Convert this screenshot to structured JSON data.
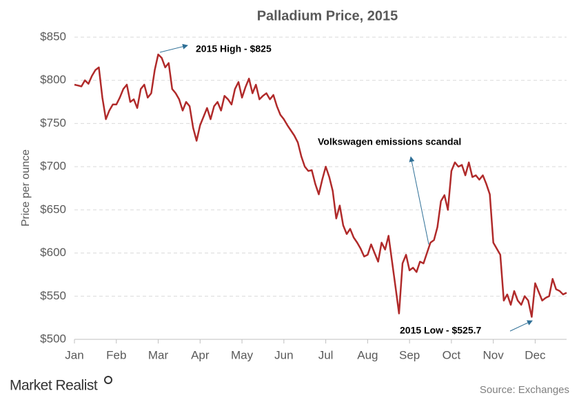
{
  "chart_data": {
    "type": "line",
    "title": "Palladium  Price, 2015",
    "ylabel": "Price per ounce",
    "source": "Source: Exchanges",
    "brand": "Market Realist",
    "annotations": [
      "2015 High  - $825",
      "Volkswagen emissions scandal",
      "2015 Low  - $525.7"
    ],
    "color": "#b02a2a",
    "grid": true,
    "ylim": [
      500,
      850
    ],
    "yticks": [
      {
        "value": 500,
        "label": "$500"
      },
      {
        "value": 550,
        "label": "$550"
      },
      {
        "value": 600,
        "label": "$600"
      },
      {
        "value": 650,
        "label": "$650"
      },
      {
        "value": 700,
        "label": "$700"
      },
      {
        "value": 750,
        "label": "$750"
      },
      {
        "value": 800,
        "label": "$800"
      },
      {
        "value": 850,
        "label": "$850"
      }
    ],
    "categories": [
      "Jan",
      null,
      null,
      null,
      null,
      null,
      null,
      null,
      null,
      null,
      null,
      null,
      "Feb",
      null,
      null,
      null,
      null,
      null,
      null,
      null,
      null,
      null,
      null,
      null,
      "Mar",
      null,
      null,
      null,
      null,
      null,
      null,
      null,
      null,
      null,
      null,
      null,
      "Apr",
      null,
      null,
      null,
      null,
      null,
      null,
      null,
      null,
      null,
      null,
      null,
      "May",
      null,
      null,
      null,
      null,
      null,
      null,
      null,
      null,
      null,
      null,
      null,
      "Jun",
      null,
      null,
      null,
      null,
      null,
      null,
      null,
      null,
      null,
      null,
      null,
      "Jul",
      null,
      null,
      null,
      null,
      null,
      null,
      null,
      null,
      null,
      null,
      null,
      "Aug",
      null,
      null,
      null,
      null,
      null,
      null,
      null,
      null,
      null,
      null,
      null,
      "Sep",
      null,
      null,
      null,
      null,
      null,
      null,
      null,
      null,
      null,
      null,
      null,
      "Oct",
      null,
      null,
      null,
      null,
      null,
      null,
      null,
      null,
      null,
      null,
      null,
      "Nov",
      null,
      null,
      null,
      null,
      null,
      null,
      null,
      null,
      null,
      null,
      null,
      "Dec",
      null,
      null,
      null,
      null,
      null,
      null,
      null,
      null,
      null
    ],
    "values": [
      795,
      794,
      793,
      800,
      796,
      805,
      812,
      815,
      780,
      755,
      765,
      772,
      772,
      780,
      790,
      795,
      775,
      778,
      768,
      790,
      795,
      780,
      785,
      812,
      830,
      826,
      815,
      820,
      790,
      785,
      778,
      765,
      775,
      770,
      745,
      730,
      748,
      758,
      768,
      755,
      770,
      775,
      765,
      782,
      778,
      772,
      790,
      798,
      780,
      792,
      802,
      785,
      795,
      778,
      782,
      785,
      778,
      783,
      770,
      760,
      755,
      748,
      742,
      736,
      728,
      712,
      700,
      695,
      696,
      680,
      668,
      685,
      700,
      688,
      672,
      640,
      655,
      632,
      622,
      628,
      618,
      612,
      605,
      596,
      598,
      610,
      600,
      590,
      612,
      604,
      620,
      590,
      560,
      530,
      588,
      598,
      580,
      583,
      578,
      590,
      588,
      600,
      612,
      615,
      630,
      660,
      667,
      650,
      695,
      705,
      700,
      702,
      690,
      705,
      688,
      690,
      685,
      690,
      680,
      668,
      612,
      605,
      598,
      545,
      552,
      540,
      556,
      545,
      540,
      550,
      545,
      526,
      565,
      555,
      545,
      548,
      550,
      570,
      558,
      556,
      552,
      554
    ]
  }
}
